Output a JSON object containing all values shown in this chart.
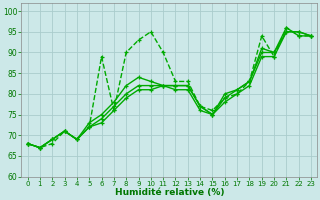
{
  "xlabel": "Humidité relative (%)",
  "xlim": [
    -0.5,
    23.5
  ],
  "ylim": [
    60,
    102
  ],
  "yticks": [
    60,
    65,
    70,
    75,
    80,
    85,
    90,
    95,
    100
  ],
  "xticks": [
    0,
    1,
    2,
    3,
    4,
    5,
    6,
    7,
    8,
    9,
    10,
    11,
    12,
    13,
    14,
    15,
    16,
    17,
    18,
    19,
    20,
    21,
    22,
    23
  ],
  "bg_color": "#cce8e8",
  "grid_color": "#aacccc",
  "line_color": "#00aa00",
  "series": [
    {
      "y": [
        68,
        67,
        68,
        71,
        69,
        72,
        89,
        76,
        90,
        93,
        95,
        90,
        83,
        83,
        77,
        76,
        79,
        80,
        83,
        94,
        89,
        96,
        94,
        94
      ],
      "ls": "--",
      "lw": 1.0
    },
    {
      "y": [
        68,
        67,
        69,
        71,
        69,
        73,
        75,
        78,
        82,
        84,
        83,
        82,
        82,
        82,
        77,
        75,
        80,
        81,
        83,
        91,
        90,
        96,
        94,
        94
      ],
      "ls": "-",
      "lw": 1.0
    },
    {
      "y": [
        68,
        67,
        69,
        71,
        69,
        72,
        74,
        77,
        80,
        82,
        82,
        82,
        82,
        82,
        77,
        75,
        79,
        81,
        83,
        90,
        90,
        95,
        95,
        94
      ],
      "ls": "-",
      "lw": 1.0
    },
    {
      "y": [
        68,
        67,
        69,
        71,
        69,
        72,
        73,
        76,
        79,
        81,
        81,
        82,
        81,
        81,
        76,
        75,
        78,
        80,
        82,
        89,
        89,
        95,
        95,
        94
      ],
      "ls": "-",
      "lw": 1.0
    }
  ]
}
